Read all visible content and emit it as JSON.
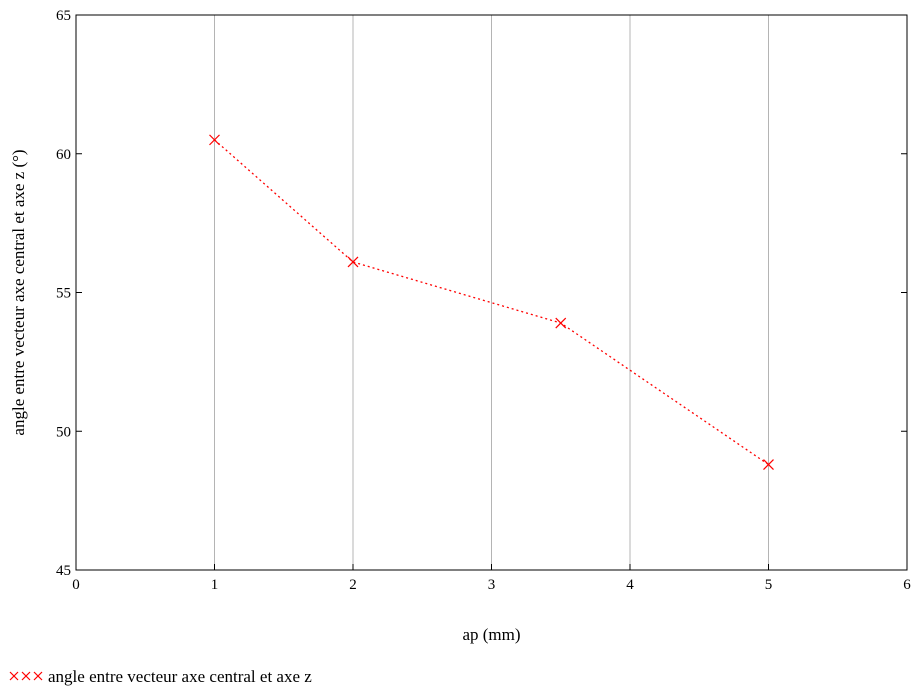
{
  "chart_data": {
    "type": "line",
    "title": "",
    "xlabel": "ap (mm)",
    "ylabel": "angle entre vecteur axe central et axe z (°)",
    "xlim": [
      0,
      6
    ],
    "ylim": [
      45,
      65
    ],
    "x_ticks": [
      0,
      1,
      2,
      3,
      4,
      5,
      6
    ],
    "y_ticks": [
      45,
      50,
      55,
      60,
      65
    ],
    "grid": {
      "vertical": true,
      "horizontal": false
    },
    "legend": {
      "placement": "bottom-left"
    },
    "series": [
      {
        "name": "angle entre vecteur axe central et axe z",
        "x": [
          1,
          2,
          3.5,
          5
        ],
        "y": [
          60.5,
          56.1,
          53.9,
          48.8
        ],
        "color": "#ff0000",
        "line_style": "dotted",
        "marker": "x"
      }
    ]
  }
}
